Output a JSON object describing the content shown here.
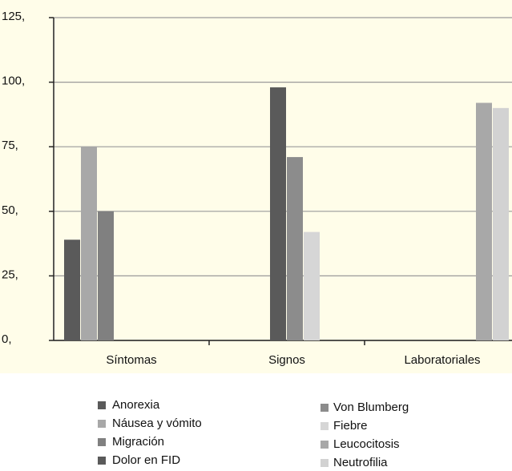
{
  "chart_data": {
    "type": "bar",
    "categories": [
      "Síntomas",
      "Signos",
      "Laboratoriales"
    ],
    "series": [
      {
        "name": "Anorexia",
        "color": "#5a5a5a",
        "values": [
          39,
          null,
          null
        ]
      },
      {
        "name": "Náusea y vómito",
        "color": "#a8a8a8",
        "values": [
          75,
          null,
          null
        ]
      },
      {
        "name": "Migración",
        "color": "#808080",
        "values": [
          50,
          null,
          null
        ]
      },
      {
        "name": "Dolor en FID",
        "color": "#5a5a5a",
        "values": [
          null,
          98,
          null
        ]
      },
      {
        "name": "Von Blumberg",
        "color": "#8c8c8c",
        "values": [
          null,
          71,
          null
        ]
      },
      {
        "name": "Fiebre",
        "color": "#d6d6d6",
        "values": [
          null,
          42,
          null
        ]
      },
      {
        "name": "Leucocitosis",
        "color": "#a8a8a8",
        "values": [
          null,
          null,
          92
        ]
      },
      {
        "name": "Neutrofilia",
        "color": "#d2d2d2",
        "values": [
          null,
          null,
          90
        ]
      }
    ],
    "ylim": [
      0,
      125
    ],
    "yticks": [
      {
        "value": 0,
        "label": "0,"
      },
      {
        "value": 25,
        "label": "25,"
      },
      {
        "value": 50,
        "label": "50,"
      },
      {
        "value": 75,
        "label": "75,"
      },
      {
        "value": 100,
        "label": "100,"
      },
      {
        "value": 125,
        "label": "125,"
      }
    ],
    "grid": true
  }
}
